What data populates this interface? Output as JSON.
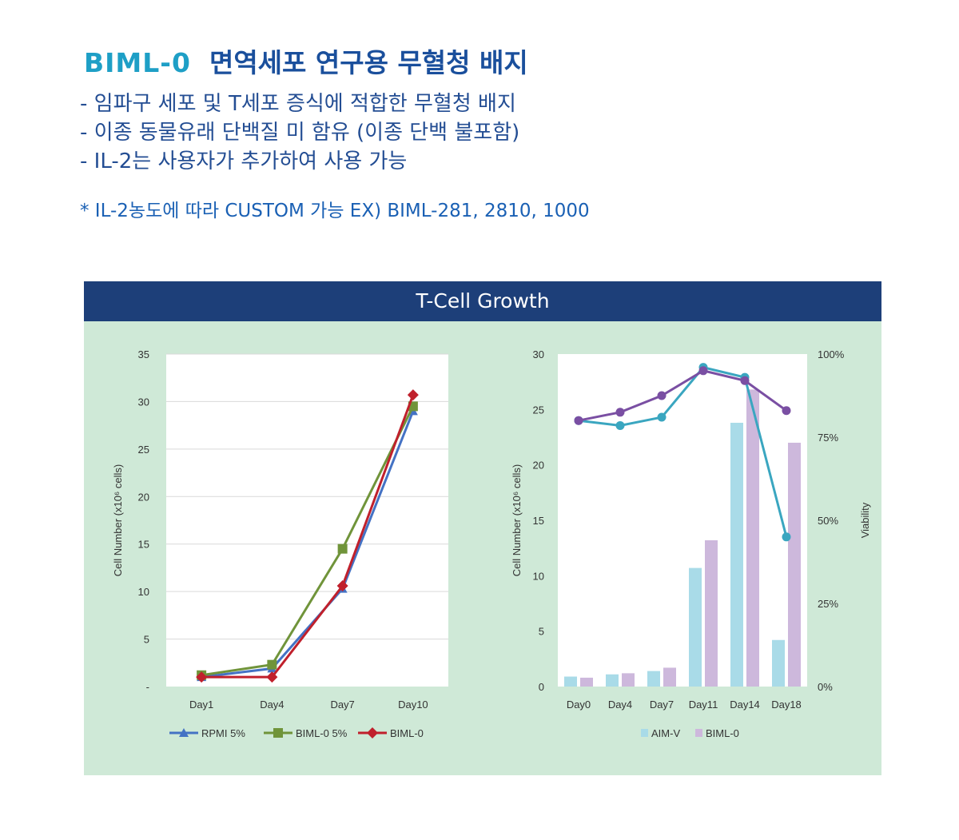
{
  "header": {
    "title_brand": "BIML-0",
    "title_rest": "면역세포 연구용 무혈청 배지",
    "bullets": [
      "- 임파구 세포 및 T세포 증식에 적합한 무혈청 배지",
      "- 이종 동물유래 단백질 미 함유 (이종 단백 불포함)",
      "- IL-2는 사용자가 추가하여 사용 가능"
    ],
    "note": "* IL-2농도에 따라 CUSTOM 가능  EX) BIML-281, 2810, 1000"
  },
  "panel": {
    "title": "T-Cell Growth"
  },
  "colors": {
    "panel_bg": "#cfe9d7",
    "panel_header": "#1d3f79",
    "rpmi": "#4472c4",
    "biml5": "#70943a",
    "biml0_line": "#c0202c",
    "aimv_bar": "#a9dbe8",
    "biml0_bar": "#cdb8dc",
    "viab_aimv": "#3aa6c0",
    "viab_biml0": "#7a4fa3"
  },
  "chart_data": [
    {
      "type": "line",
      "title": "",
      "categories": [
        "Day1",
        "Day4",
        "Day7",
        "Day10"
      ],
      "ylabel": "Cell Number  (x10⁶ cells)",
      "ylim": [
        0,
        35
      ],
      "yticks": [
        "-",
        "5",
        "10",
        "15",
        "20",
        "25",
        "30",
        "35"
      ],
      "series": [
        {
          "name": "RPMI 5%",
          "values": [
            1.0,
            1.9,
            10.3,
            29.0
          ],
          "marker": "triangle"
        },
        {
          "name": "BIML-0 5%",
          "values": [
            1.2,
            2.3,
            14.5,
            29.5
          ],
          "marker": "square"
        },
        {
          "name": "BIML-0",
          "values": [
            1.0,
            1.0,
            10.6,
            30.7
          ],
          "marker": "diamond"
        }
      ],
      "legend": "bottom"
    },
    {
      "type": "bar",
      "title": "",
      "categories": [
        "Day0",
        "Day4",
        "Day7",
        "Day11",
        "Day14",
        "Day18"
      ],
      "ylabel": "Cell Number  (x10⁶ cells)",
      "ylim": [
        0,
        30
      ],
      "yticks": [
        "0",
        "5",
        "10",
        "15",
        "20",
        "25",
        "30"
      ],
      "series": [
        {
          "name": "AIM-V",
          "values": [
            0.9,
            1.1,
            1.4,
            10.7,
            23.8,
            4.2
          ]
        },
        {
          "name": "BIML-0",
          "values": [
            0.8,
            1.2,
            1.7,
            13.2,
            26.8,
            22.0
          ]
        }
      ],
      "y2label": "Viability",
      "y2lim": [
        0,
        100
      ],
      "y2ticks": [
        "0%",
        "25%",
        "50%",
        "75%",
        "100%"
      ],
      "viability_series": [
        {
          "name": "AIM-V",
          "values": [
            80,
            78.5,
            81,
            96,
            93,
            45
          ]
        },
        {
          "name": "BIML-0",
          "values": [
            80,
            82.5,
            87.5,
            95,
            92,
            83
          ]
        }
      ],
      "legend": "bottom"
    }
  ]
}
